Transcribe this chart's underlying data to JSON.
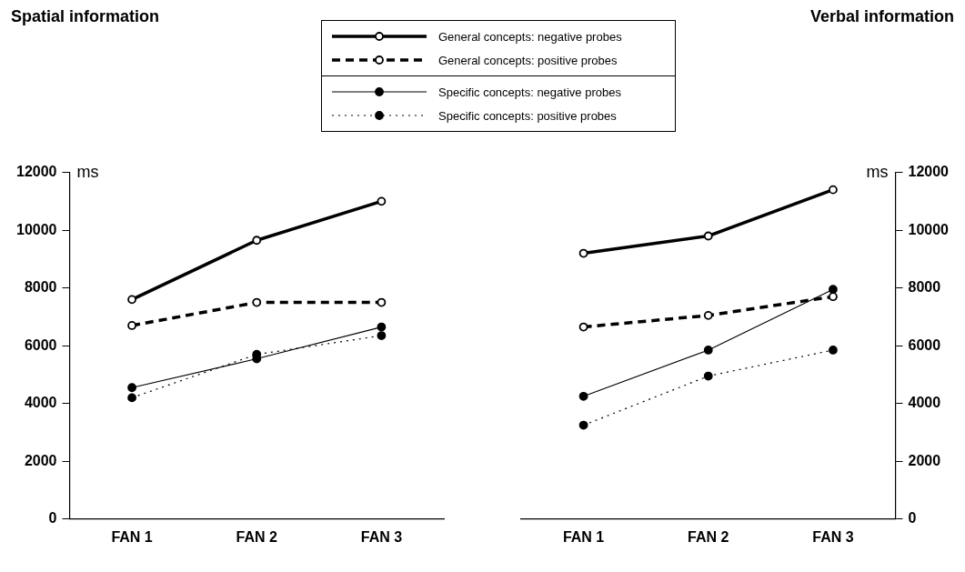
{
  "chart_data": [
    {
      "type": "line",
      "title": "Spatial information",
      "ylabel": "ms",
      "categories": [
        "FAN 1",
        "FAN 2",
        "FAN 3"
      ],
      "ylim": [
        0,
        12000
      ],
      "yticks": [
        0,
        2000,
        4000,
        6000,
        8000,
        10000,
        12000
      ],
      "grid": false,
      "legend": "top",
      "marker": "circle",
      "series": [
        {
          "name": "General concepts: negative probes",
          "color": "#000000",
          "line_style": "solid",
          "values": [
            7600,
            9650,
            11000
          ]
        },
        {
          "name": "General concepts: positive probes",
          "color": "#000000",
          "line_style": "dashed",
          "values": [
            6700,
            7500,
            7500
          ]
        },
        {
          "name": "Specific concepts: negative probes",
          "color": "#000000",
          "line_style": "solid",
          "values": [
            4550,
            5550,
            6650
          ]
        },
        {
          "name": "Specific concepts: positive probes",
          "color": "#000000",
          "line_style": "dotted",
          "values": [
            4200,
            5700,
            6350
          ]
        }
      ]
    },
    {
      "type": "line",
      "title": "Verbal information",
      "ylabel": "ms",
      "categories": [
        "FAN 1",
        "FAN 2",
        "FAN 3"
      ],
      "ylim": [
        0,
        12000
      ],
      "yticks": [
        0,
        2000,
        4000,
        6000,
        8000,
        10000,
        12000
      ],
      "grid": false,
      "marker": "circle",
      "series": [
        {
          "color": "#000000",
          "line_style": "solid",
          "values": [
            9200,
            9800,
            11400
          ]
        },
        {
          "color": "#000000",
          "line_style": "dashed",
          "values": [
            6650,
            7050,
            7700
          ]
        },
        {
          "color": "#000000",
          "line_style": "solid",
          "values": [
            4250,
            5850,
            7950
          ]
        },
        {
          "color": "#000000",
          "line_style": "dotted",
          "values": [
            3250,
            4950,
            5850
          ]
        }
      ]
    }
  ]
}
